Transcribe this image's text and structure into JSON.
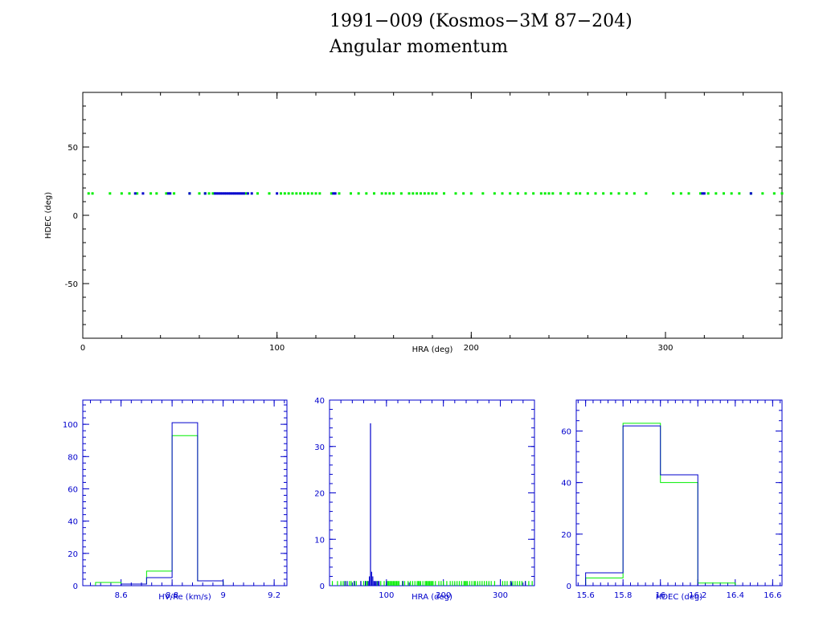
{
  "title_line1": "1991−009 (Kosmos−3M 87−204)",
  "title_line2": "Angular momentum",
  "colors": {
    "black": "#000000",
    "blue": "#0000cc",
    "green": "#00ee00"
  },
  "chart_data": [
    {
      "type": "scatter",
      "xlabel": "HRA (deg)",
      "ylabel": "HDEC (deg)",
      "xlim": [
        0,
        360
      ],
      "ylim": [
        -90,
        90
      ],
      "xticks": [
        0,
        100,
        200,
        300
      ],
      "yticks": [
        -50,
        0,
        50
      ],
      "axis_color": "black",
      "series": [
        {
          "color": "green",
          "y": 16,
          "x": [
            3,
            5,
            14,
            20,
            24,
            28,
            35,
            38,
            43,
            47,
            55,
            60,
            63,
            65,
            67,
            84,
            90,
            96,
            102,
            104,
            106,
            108,
            110,
            112,
            114,
            116,
            118,
            120,
            122,
            128,
            132,
            138,
            142,
            146,
            150,
            154,
            156,
            158,
            160,
            164,
            168,
            170,
            172,
            174,
            176,
            178,
            180,
            182,
            186,
            192,
            196,
            200,
            206,
            212,
            216,
            220,
            224,
            228,
            232,
            236,
            238,
            240,
            242,
            246,
            250,
            254,
            256,
            260,
            264,
            268,
            272,
            276,
            280,
            284,
            290,
            304,
            308,
            312,
            318,
            322,
            326,
            330,
            334,
            338,
            344,
            350,
            356,
            360
          ]
        },
        {
          "color": "blue",
          "y": 16,
          "x": [
            27,
            31,
            44,
            45,
            55,
            63,
            68,
            69,
            70,
            71,
            72,
            73,
            74,
            75,
            76,
            77,
            78,
            79,
            80,
            81,
            82,
            83,
            85,
            87,
            100,
            129,
            130,
            319,
            320,
            344
          ]
        }
      ]
    },
    {
      "type": "histogram",
      "xlabel": "HV/Re (km/s)",
      "xlim": [
        8.45,
        9.25
      ],
      "ylim": [
        0,
        115
      ],
      "xticks": [
        8.6,
        8.8,
        9,
        9.2
      ],
      "yticks": [
        0,
        20,
        40,
        60,
        80,
        100
      ],
      "axis_color": "blue",
      "series": [
        {
          "color": "green",
          "edges": [
            8.5,
            8.6,
            8.7,
            8.8,
            8.9,
            9.0
          ],
          "values": [
            2,
            1,
            9,
            93,
            3
          ]
        },
        {
          "color": "blue",
          "edges": [
            8.5,
            8.6,
            8.7,
            8.8,
            8.9,
            9.0
          ],
          "values": [
            0,
            1,
            5,
            101,
            3
          ]
        }
      ]
    },
    {
      "type": "histogram",
      "xlabel": "HRA (deg)",
      "xlim": [
        0,
        360
      ],
      "ylim": [
        0,
        40
      ],
      "xticks": [
        100,
        200,
        300
      ],
      "yticks": [
        0,
        10,
        20,
        30,
        40
      ],
      "axis_color": "blue",
      "series": [
        {
          "color": "green",
          "bar_width": 1,
          "x": [
            5,
            14,
            20,
            24,
            28,
            35,
            38,
            43,
            47,
            55,
            60,
            63,
            65,
            67,
            84,
            90,
            96,
            102,
            104,
            106,
            108,
            110,
            112,
            114,
            116,
            118,
            120,
            122,
            128,
            132,
            138,
            142,
            146,
            150,
            154,
            156,
            158,
            160,
            164,
            168,
            170,
            172,
            174,
            176,
            178,
            180,
            182,
            186,
            192,
            196,
            200,
            206,
            212,
            216,
            220,
            224,
            228,
            232,
            236,
            238,
            240,
            242,
            246,
            250,
            254,
            256,
            260,
            264,
            268,
            272,
            276,
            280,
            284,
            290,
            304,
            308,
            312,
            318,
            322,
            326,
            330,
            334,
            338,
            344,
            350,
            356
          ],
          "values": [
            1,
            1,
            1,
            1,
            1,
            1,
            1,
            1,
            1,
            1,
            1,
            1,
            1,
            1,
            1,
            1,
            1,
            1,
            1,
            1,
            1,
            1,
            1,
            1,
            1,
            1,
            1,
            1,
            1,
            1,
            1,
            1,
            1,
            1,
            1,
            1,
            1,
            1,
            1,
            1,
            1,
            1,
            1,
            1,
            1,
            1,
            1,
            1,
            1,
            1,
            1,
            1,
            1,
            1,
            1,
            1,
            1,
            1,
            1,
            1,
            1,
            1,
            1,
            1,
            1,
            1,
            1,
            1,
            1,
            1,
            1,
            1,
            1,
            1,
            1,
            1,
            1,
            1,
            1,
            1,
            1,
            1,
            1,
            1,
            1,
            1
          ]
        },
        {
          "color": "blue",
          "bar_width": 1,
          "x": [
            27,
            31,
            44,
            55,
            63,
            68,
            70,
            72,
            74,
            76,
            78,
            80,
            82,
            85,
            87,
            100,
            129,
            319,
            344
          ],
          "values": [
            1,
            1,
            1,
            1,
            1,
            1,
            2,
            35,
            3,
            2,
            1,
            1,
            1,
            1,
            1,
            1,
            1,
            1,
            1
          ]
        }
      ]
    },
    {
      "type": "histogram",
      "xlabel": "HDEC (deg)",
      "xlim": [
        15.55,
        16.65
      ],
      "ylim": [
        0,
        72
      ],
      "xticks": [
        15.6,
        15.8,
        16,
        16.2,
        16.4,
        16.6
      ],
      "yticks": [
        0,
        20,
        40,
        60
      ],
      "axis_color": "blue",
      "series": [
        {
          "color": "green",
          "edges": [
            15.6,
            15.8,
            16.0,
            16.2,
            16.4
          ],
          "values": [
            3,
            63,
            40,
            1
          ]
        },
        {
          "color": "blue",
          "edges": [
            15.6,
            15.8,
            16.0,
            16.2,
            16.4
          ],
          "values": [
            5,
            62,
            43,
            0
          ]
        }
      ]
    }
  ]
}
